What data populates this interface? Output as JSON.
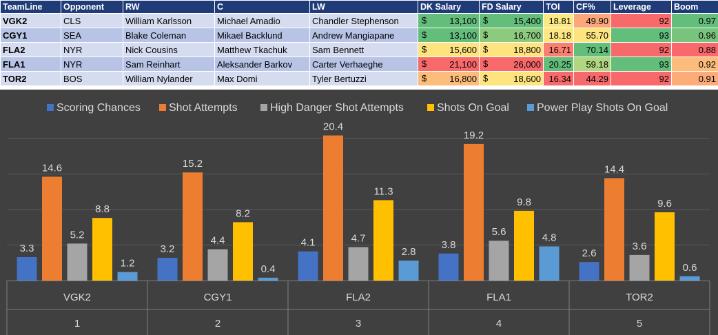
{
  "table": {
    "headers": [
      "TeamLine",
      "Opponent",
      "RW",
      "C",
      "LW",
      "DK Salary",
      "FD Salary",
      "TOI",
      "CF%",
      "Leverage",
      "Boom"
    ],
    "currency_symbol": "$",
    "rows": [
      {
        "team": "VGK2",
        "opp": "CLS",
        "rw": "William Karlsson",
        "c": "Michael Amadio",
        "lw": "Chandler Stephenson",
        "dk": "13,100",
        "fd": "15,400",
        "toi": "18.81",
        "cf": "49.90",
        "lev": "92",
        "boom": "0.97"
      },
      {
        "team": "CGY1",
        "opp": "SEA",
        "rw": "Blake Coleman",
        "c": "Mikael Backlund",
        "lw": "Andrew Mangiapane",
        "dk": "13,100",
        "fd": "16,700",
        "toi": "18.18",
        "cf": "55.70",
        "lev": "93",
        "boom": "0.96"
      },
      {
        "team": "FLA2",
        "opp": "NYR",
        "rw": "Nick Cousins",
        "c": "Matthew Tkachuk",
        "lw": "Sam Bennett",
        "dk": "15,600",
        "fd": "18,800",
        "toi": "16.71",
        "cf": "70.14",
        "lev": "92",
        "boom": "0.88"
      },
      {
        "team": "FLA1",
        "opp": "NYR",
        "rw": "Sam Reinhart",
        "c": "Aleksander Barkov",
        "lw": "Carter Verhaeghe",
        "dk": "21,100",
        "fd": "26,000",
        "toi": "20.25",
        "cf": "59.18",
        "lev": "93",
        "boom": "0.92"
      },
      {
        "team": "TOR2",
        "opp": "BOS",
        "rw": "William Nylander",
        "c": "Max Domi",
        "lw": "Tyler Bertuzzi",
        "dk": "16,800",
        "fd": "18,600",
        "toi": "16.34",
        "cf": "44.29",
        "lev": "92",
        "boom": "0.91"
      }
    ],
    "colors": {
      "dk": [
        "#63be7b",
        "#63be7b",
        "#fde47f",
        "#f8696b",
        "#fcbc7b"
      ],
      "fd": [
        "#63be7b",
        "#8ccb7e",
        "#fde47f",
        "#f8696b",
        "#fde47f"
      ],
      "toi": [
        "#fbe983",
        "#fee783",
        "#f98070",
        "#63be7b",
        "#f8696b"
      ],
      "cf": [
        "#fca77a",
        "#fde47f",
        "#63be7b",
        "#b0d680",
        "#f8696b"
      ],
      "lev": [
        "#f8696b",
        "#63be7b",
        "#f8696b",
        "#63be7b",
        "#f8696b"
      ],
      "boom": [
        "#63be7b",
        "#79c47d",
        "#f8696b",
        "#fcbc7b",
        "#fbac78"
      ]
    }
  },
  "chart_data": {
    "type": "bar",
    "categories": [
      {
        "team": "VGK2",
        "rank": "1"
      },
      {
        "team": "CGY1",
        "rank": "2"
      },
      {
        "team": "FLA2",
        "rank": "3"
      },
      {
        "team": "FLA1",
        "rank": "4"
      },
      {
        "team": "TOR2",
        "rank": "5"
      }
    ],
    "series": [
      {
        "name": "Scoring Chances",
        "color": "#4472c4",
        "values": [
          3.3,
          3.2,
          4.1,
          3.8,
          2.6
        ]
      },
      {
        "name": "Shot Attempts",
        "color": "#ed7d31",
        "values": [
          14.6,
          15.2,
          20.4,
          19.2,
          14.4
        ]
      },
      {
        "name": "High Danger Shot Attempts",
        "color": "#a5a5a5",
        "values": [
          5.2,
          4.4,
          4.7,
          5.6,
          3.6
        ]
      },
      {
        "name": "Shots On Goal",
        "color": "#ffc000",
        "values": [
          8.8,
          8.2,
          11.3,
          9.8,
          9.6
        ]
      },
      {
        "name": "Power Play Shots On Goal",
        "color": "#5b9bd5",
        "values": [
          1.2,
          0.4,
          2.8,
          4.8,
          0.6
        ]
      }
    ],
    "ylim": [
      0,
      22
    ],
    "legend": "top",
    "grid": true,
    "data_labels": true,
    "title": "",
    "xlabel": "",
    "ylabel": ""
  }
}
